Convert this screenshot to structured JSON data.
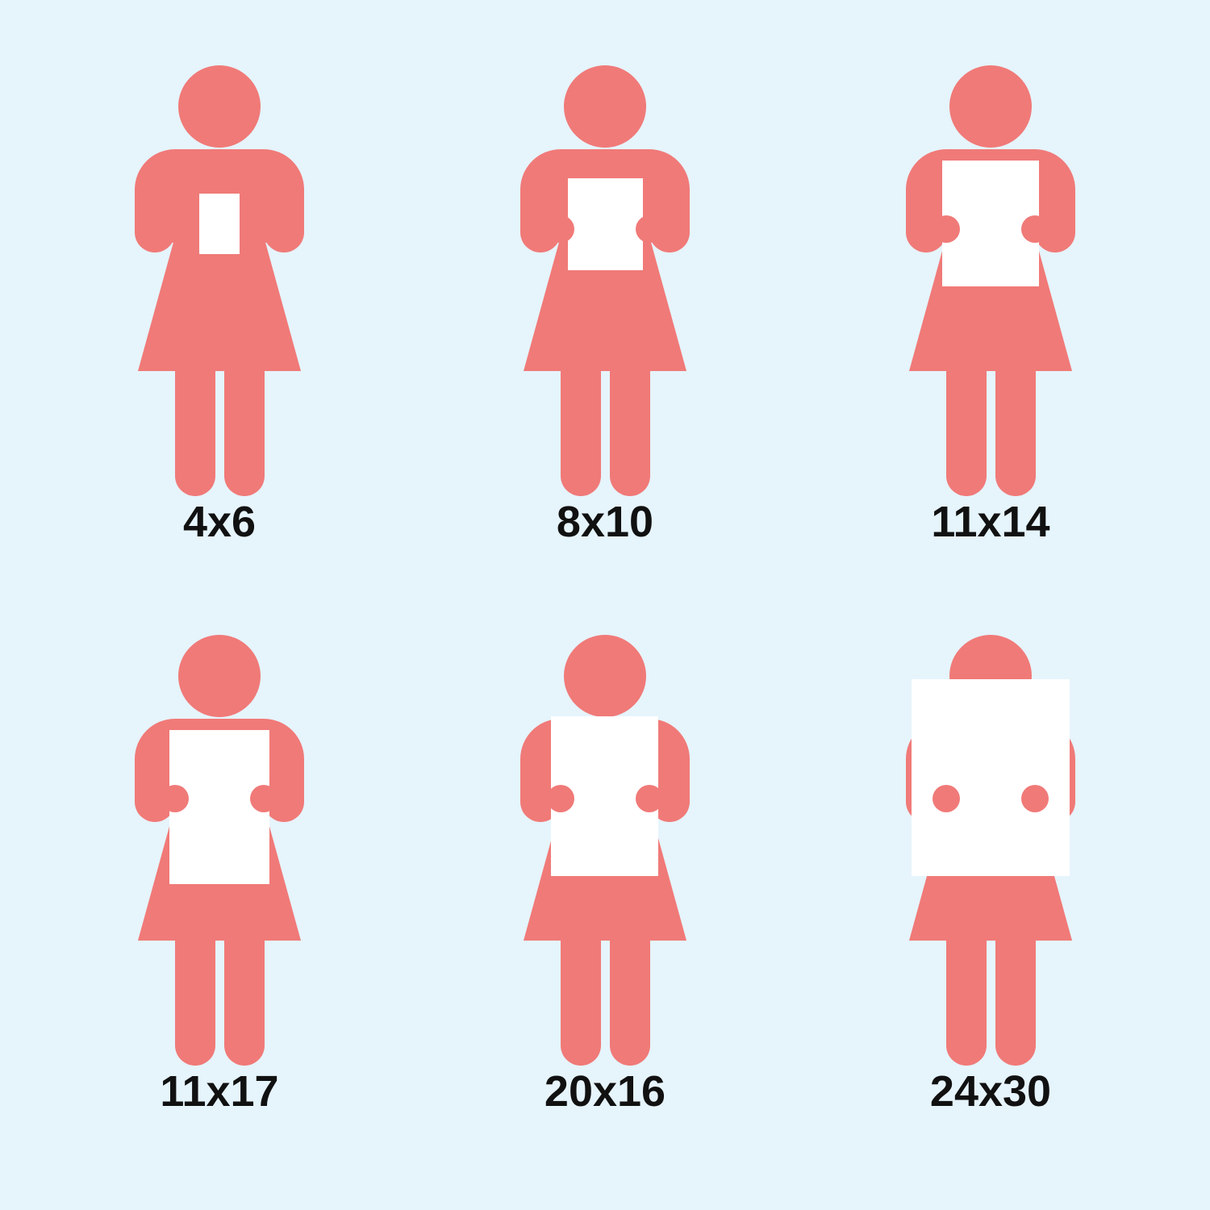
{
  "colors": {
    "background": "#e6f4fc",
    "figure": "#f07a78",
    "paper": "#ffffff",
    "text": "#111111"
  },
  "icon": "woman-holding-print-icon",
  "items": [
    {
      "label": "4x6"
    },
    {
      "label": "8x10"
    },
    {
      "label": "11x14"
    },
    {
      "label": "11x17"
    },
    {
      "label": "20x16"
    },
    {
      "label": "24x30"
    }
  ]
}
